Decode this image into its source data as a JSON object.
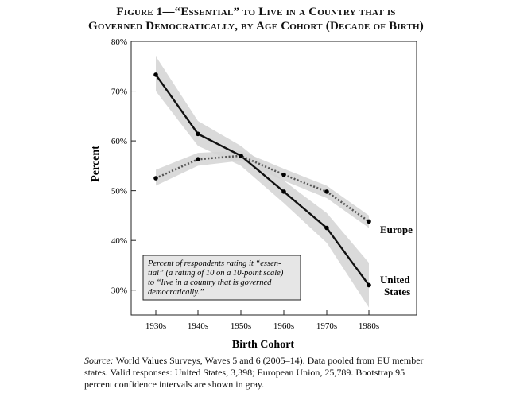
{
  "title": {
    "line1": "Figure 1—“Essential” to Live in a Country that is",
    "line2": "Governed Democratically, by Age Cohort (Decade of Birth)"
  },
  "chart_data": {
    "type": "line",
    "xlabel": "Birth Cohort",
    "ylabel": "Percent",
    "categories": [
      "1930s",
      "1940s",
      "1950s",
      "1960s",
      "1970s",
      "1980s"
    ],
    "ylim": [
      25,
      80
    ],
    "yticks": [
      30,
      40,
      50,
      60,
      70,
      80
    ],
    "ytick_labels": [
      "30%",
      "40%",
      "50%",
      "60%",
      "70%",
      "80%"
    ],
    "grid": false,
    "series": [
      {
        "name": "United States",
        "label_line1": "United",
        "label_line2": "States",
        "style": "solid",
        "values": [
          73.3,
          61.4,
          57.0,
          49.8,
          42.5,
          31.0
        ],
        "ci_low": [
          70.0,
          59.0,
          55.0,
          47.5,
          39.5,
          26.5
        ],
        "ci_high": [
          77.0,
          64.0,
          59.0,
          52.0,
          45.5,
          35.5
        ]
      },
      {
        "name": "Europe",
        "label_line1": "Europe",
        "style": "dotted",
        "values": [
          52.5,
          56.3,
          57.0,
          53.2,
          49.8,
          43.8
        ],
        "ci_low": [
          51.0,
          55.0,
          56.0,
          52.0,
          48.5,
          42.5
        ],
        "ci_high": [
          54.2,
          57.6,
          58.0,
          54.4,
          51.0,
          45.0
        ]
      }
    ],
    "annotation": "Percent of respondents rating it “essen- tial” (a rating of 10 on a 10-point scale) to “live in a country that is governed democratically.”",
    "annotation_lines": [
      "Percent of respondents rating it “essen-",
      "tial” (a rating of 10 on a 10-point scale)",
      "to “live in a country that is governed",
      "democratically.”"
    ]
  },
  "source": {
    "label": "Source:",
    "text": " World Values Surveys, Waves 5 and 6 (2005–14). Data pooled from EU member states. Valid responses: United States, 3,398; European Union, 25,789. Bootstrap 95 percent confidence intervals are shown in gray."
  },
  "colors": {
    "band": "#d3d3d3",
    "line": "#111111",
    "europe_line": "#555555",
    "annotation_bg": "#e6e6e6"
  }
}
